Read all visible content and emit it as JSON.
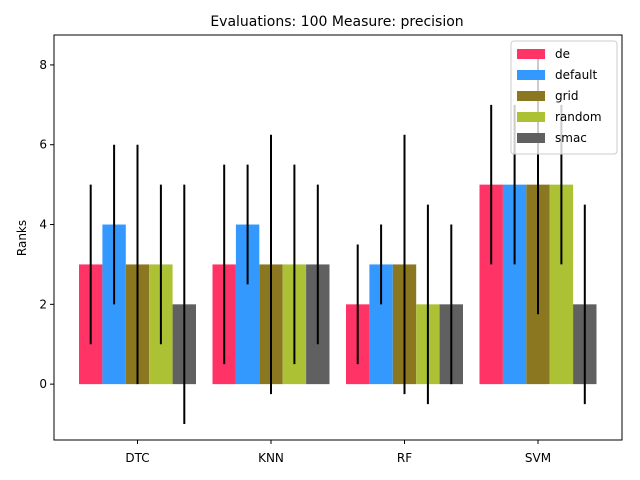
{
  "chart_data": {
    "type": "bar",
    "title": "Evaluations: 100 Measure: precision",
    "xlabel": "",
    "ylabel": "Ranks",
    "ylim": [
      -1.4,
      8.75
    ],
    "yticks": [
      0,
      2,
      4,
      6,
      8
    ],
    "categories": [
      "DTC",
      "KNN",
      "RF",
      "SVM"
    ],
    "legend_position": "top-right",
    "series": [
      {
        "name": "de",
        "color": "#ff3366",
        "values": [
          3,
          3,
          2,
          5
        ],
        "err_low": [
          1,
          0.5,
          0.5,
          3
        ],
        "err_high": [
          5,
          5.5,
          3.5,
          7
        ]
      },
      {
        "name": "default",
        "color": "#3399ff",
        "values": [
          4,
          4,
          3,
          5
        ],
        "err_low": [
          2,
          2.5,
          2,
          3
        ],
        "err_high": [
          6,
          5.5,
          4,
          7
        ]
      },
      {
        "name": "grid",
        "color": "#8b7720",
        "values": [
          3,
          3,
          3,
          5
        ],
        "err_low": [
          0,
          -0.25,
          -0.25,
          1.75
        ],
        "err_high": [
          6,
          6.25,
          6.25,
          8.25
        ]
      },
      {
        "name": "random",
        "color": "#adc135",
        "values": [
          3,
          3,
          2,
          5
        ],
        "err_low": [
          1,
          0.5,
          -0.5,
          3
        ],
        "err_high": [
          5,
          5.5,
          4.5,
          7
        ]
      },
      {
        "name": "smac",
        "color": "#606060",
        "values": [
          2,
          3,
          2,
          2
        ],
        "err_low": [
          -1,
          1,
          0,
          -0.5
        ],
        "err_high": [
          5,
          5,
          4,
          4.5
        ]
      }
    ]
  }
}
